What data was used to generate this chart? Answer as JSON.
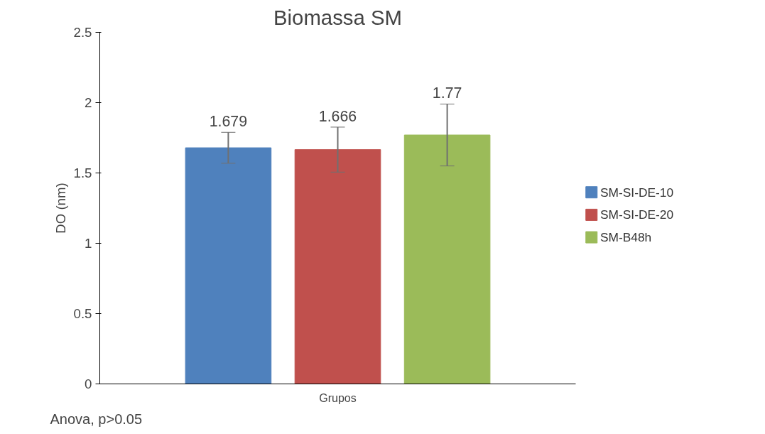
{
  "chart_data": {
    "type": "bar",
    "title": "Biomassa SM",
    "xlabel": "Grupos",
    "ylabel": "DO (nm)",
    "categories": [
      null
    ],
    "series": [
      {
        "name": "SM-SI-DE-10",
        "color": "#4f81bd",
        "values": [
          1.679
        ],
        "errors": [
          0.11
        ]
      },
      {
        "name": "SM-SI-DE-20",
        "color": "#c0504d",
        "values": [
          1.666
        ],
        "errors": [
          0.16
        ]
      },
      {
        "name": "SM-B48h",
        "color": "#9bbb59",
        "values": [
          1.77
        ],
        "errors": [
          0.22
        ]
      }
    ],
    "ylim": [
      0,
      2.5
    ],
    "yticks": [
      0,
      0.5,
      1,
      1.5,
      2,
      2.5
    ],
    "data_labels": true,
    "grid": false,
    "legend": "right",
    "annotations": [
      "Anova, p>0.05"
    ]
  }
}
